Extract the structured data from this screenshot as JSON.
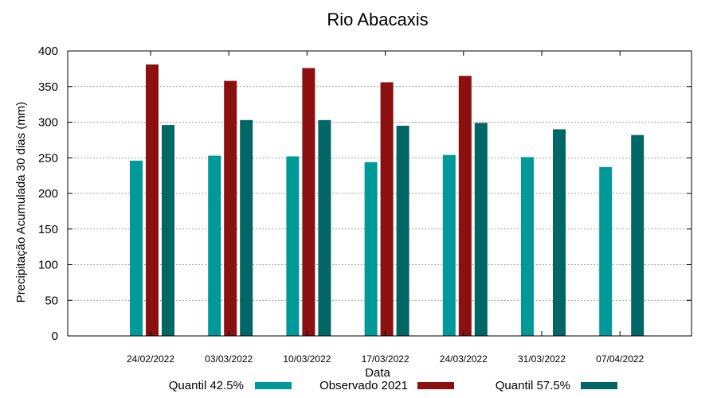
{
  "chart_data": {
    "type": "bar",
    "title": "Rio Abacaxis",
    "xlabel": "Data",
    "ylabel": "Precipitação Acumulada 30 dias (mm)",
    "ylim": [
      0,
      400
    ],
    "yticks": [
      0,
      50,
      100,
      150,
      200,
      250,
      300,
      350,
      400
    ],
    "grid": true,
    "legend_position": "bottom",
    "categories": [
      "24/02/2022",
      "03/03/2022",
      "10/03/2022",
      "17/03/2022",
      "24/03/2022",
      "31/03/2022",
      "07/04/2022"
    ],
    "series": [
      {
        "name": "Quantil 42.5%",
        "color": "#00999a",
        "values": [
          246,
          253,
          252,
          244,
          254,
          251,
          237
        ]
      },
      {
        "name": "Observado 2021",
        "color": "#8b1010",
        "values": [
          381,
          358,
          376,
          356,
          365,
          null,
          null
        ]
      },
      {
        "name": "Quantil 57.5%",
        "color": "#006666",
        "values": [
          296,
          303,
          303,
          295,
          299,
          290,
          282
        ]
      }
    ]
  }
}
